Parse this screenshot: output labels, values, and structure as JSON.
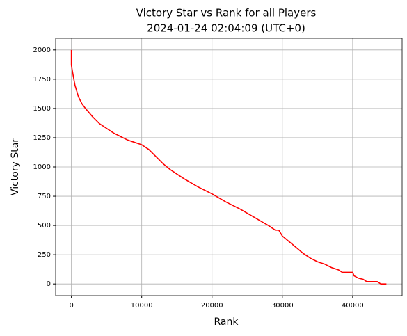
{
  "chart_data": {
    "type": "line",
    "title": "Victory Star vs Rank for all Players",
    "subtitle": "2024-01-24 02:04:09 (UTC+0)",
    "x_label": "Rank",
    "y_label": "Victory Star",
    "x": [
      0,
      0,
      200,
      500,
      1000,
      1500,
      2000,
      3000,
      4000,
      5000,
      6000,
      7000,
      8000,
      9000,
      10000,
      11000,
      12000,
      13000,
      14000,
      16000,
      18000,
      20000,
      22000,
      24000,
      26000,
      28000,
      29000,
      29500,
      30000,
      31000,
      32000,
      33000,
      34000,
      35000,
      36000,
      37000,
      38000,
      38500,
      39500,
      40000,
      40200,
      40800,
      41500,
      42000,
      43500,
      44000,
      44800
    ],
    "series": [
      {
        "name": "Victory Star",
        "color": "#ff0000",
        "values": [
          2000,
          1870,
          1800,
          1700,
          1600,
          1540,
          1500,
          1430,
          1370,
          1330,
          1290,
          1260,
          1230,
          1210,
          1190,
          1150,
          1090,
          1030,
          980,
          900,
          830,
          770,
          700,
          640,
          570,
          500,
          460,
          460,
          410,
          360,
          310,
          260,
          220,
          190,
          170,
          140,
          120,
          100,
          100,
          100,
          70,
          50,
          40,
          20,
          20,
          0,
          0
        ]
      }
    ],
    "xlim": [
      -2240,
      47040
    ],
    "ylim": [
      -100,
      2100
    ],
    "xticks": [
      0,
      10000,
      20000,
      30000,
      40000
    ],
    "yticks": [
      0,
      250,
      500,
      750,
      1000,
      1250,
      1500,
      1750,
      2000
    ],
    "grid": true
  }
}
